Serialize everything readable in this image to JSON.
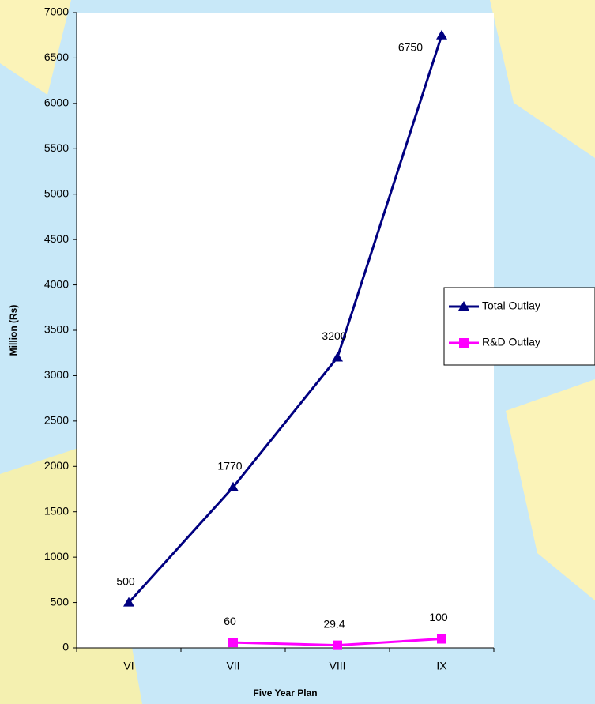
{
  "chart_data": {
    "type": "line",
    "xlabel": "Five Year Plan",
    "ylabel": "Million (Rs)",
    "categories": [
      "VI",
      "VII",
      "VIII",
      "IX"
    ],
    "series": [
      {
        "name": "Total Outlay",
        "color": "#000080",
        "marker": "triangle",
        "values": [
          500,
          1770,
          3200,
          6750
        ]
      },
      {
        "name": "R&D Outlay",
        "color": "#ff00ff",
        "marker": "square",
        "values": [
          null,
          60,
          29.4,
          100
        ]
      }
    ],
    "ylim": [
      0,
      7000
    ],
    "yticks": [
      0,
      500,
      1000,
      1500,
      2000,
      2500,
      3000,
      3500,
      4000,
      4500,
      5000,
      5500,
      6000,
      6500,
      7000
    ],
    "legend": "right"
  }
}
